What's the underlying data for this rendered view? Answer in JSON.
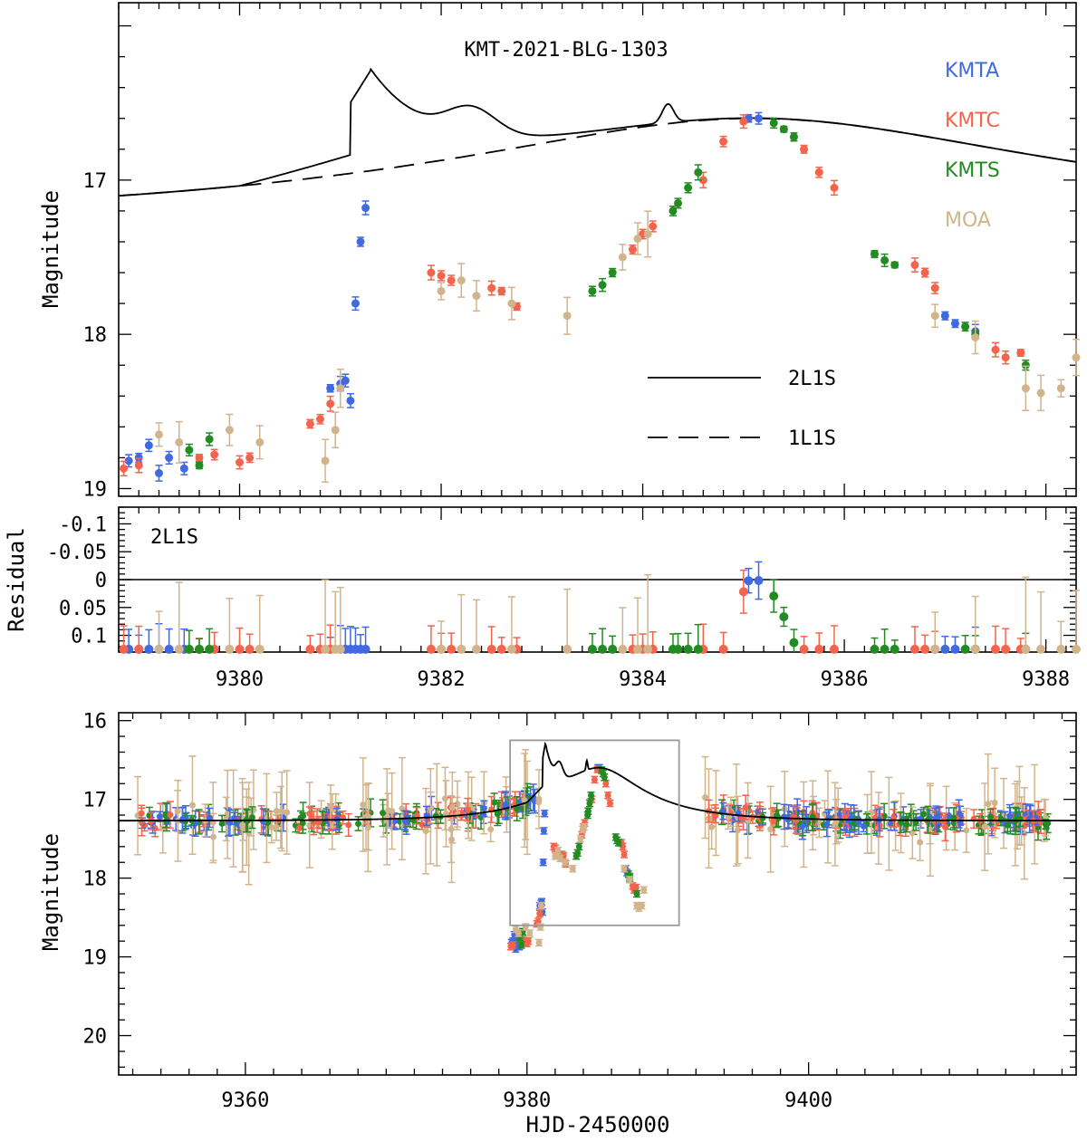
{
  "chart_data": [
    {
      "type": "scatter",
      "panel": "top",
      "title": "KMT-2021-BLG-1303",
      "xlabel": "",
      "ylabel": "Magnitude",
      "xlim": [
        9378.8,
        9388.3
      ],
      "ylim": [
        19.05,
        15.85
      ],
      "y_inverted": true,
      "x_ticks": [
        "9380",
        "9382",
        "9384",
        "9386",
        "9388"
      ],
      "y_ticks": [
        "17",
        "18",
        "19"
      ],
      "legend": [
        {
          "name": "KMTA",
          "color": "#4169e1"
        },
        {
          "name": "KMTC",
          "color": "#f4644c"
        },
        {
          "name": "KMTS",
          "color": "#228b22"
        },
        {
          "name": "MOA",
          "color": "#d2b48c"
        }
      ],
      "model_legend": [
        {
          "name": "2L1S",
          "style": "solid"
        },
        {
          "name": "1L1S",
          "style": "dashed"
        }
      ],
      "series": [
        {
          "name": "KMTA",
          "color": "#4169e1",
          "points": [
            [
              9378.9,
              18.82
            ],
            [
              9379.0,
              18.8
            ],
            [
              9379.1,
              18.72
            ],
            [
              9379.2,
              18.9
            ],
            [
              9379.3,
              18.8
            ],
            [
              9379.45,
              18.87
            ],
            [
              9380.9,
              18.35
            ],
            [
              9381.0,
              18.32
            ],
            [
              9381.05,
              18.3
            ],
            [
              9381.1,
              18.43
            ],
            [
              9381.15,
              17.8
            ],
            [
              9381.2,
              17.4
            ],
            [
              9381.25,
              17.18
            ],
            [
              9385.05,
              16.6
            ],
            [
              9385.15,
              16.6
            ],
            [
              9387.0,
              17.88
            ],
            [
              9387.1,
              17.93
            ],
            [
              9387.3,
              17.98
            ]
          ]
        },
        {
          "name": "KMTC",
          "color": "#f4644c",
          "points": [
            [
              9378.85,
              18.87
            ],
            [
              9379.0,
              18.85
            ],
            [
              9379.6,
              18.8
            ],
            [
              9379.75,
              18.78
            ],
            [
              9380.0,
              18.83
            ],
            [
              9380.1,
              18.8
            ],
            [
              9380.7,
              18.58
            ],
            [
              9380.8,
              18.55
            ],
            [
              9380.9,
              18.45
            ],
            [
              9381.9,
              17.6
            ],
            [
              9382.0,
              17.62
            ],
            [
              9382.1,
              17.65
            ],
            [
              9382.5,
              17.7
            ],
            [
              9382.6,
              17.72
            ],
            [
              9382.75,
              17.82
            ],
            [
              9383.9,
              17.45
            ],
            [
              9384.0,
              17.35
            ],
            [
              9384.1,
              17.3
            ],
            [
              9384.6,
              17.0
            ],
            [
              9384.8,
              16.75
            ],
            [
              9385.0,
              16.62
            ],
            [
              9385.6,
              16.8
            ],
            [
              9385.75,
              16.95
            ],
            [
              9385.9,
              17.05
            ],
            [
              9386.7,
              17.55
            ],
            [
              9386.8,
              17.6
            ],
            [
              9386.9,
              17.7
            ],
            [
              9387.5,
              18.1
            ],
            [
              9387.6,
              18.15
            ],
            [
              9387.75,
              18.12
            ]
          ]
        },
        {
          "name": "KMTS",
          "color": "#228b22",
          "points": [
            [
              9379.5,
              18.75
            ],
            [
              9379.6,
              18.85
            ],
            [
              9379.7,
              18.68
            ],
            [
              9383.5,
              17.72
            ],
            [
              9383.6,
              17.68
            ],
            [
              9383.7,
              17.6
            ],
            [
              9384.3,
              17.2
            ],
            [
              9384.35,
              17.15
            ],
            [
              9384.45,
              17.05
            ],
            [
              9384.55,
              16.95
            ],
            [
              9385.3,
              16.63
            ],
            [
              9385.4,
              16.67
            ],
            [
              9385.5,
              16.72
            ],
            [
              9386.3,
              17.48
            ],
            [
              9386.4,
              17.52
            ],
            [
              9386.5,
              17.55
            ],
            [
              9387.2,
              17.95
            ],
            [
              9387.3,
              18.0
            ],
            [
              9387.8,
              18.2
            ]
          ]
        },
        {
          "name": "MOA",
          "color": "#d2b48c",
          "points": [
            [
              9379.2,
              18.65
            ],
            [
              9379.4,
              18.7
            ],
            [
              9379.9,
              18.62
            ],
            [
              9380.2,
              18.7
            ],
            [
              9380.85,
              18.82
            ],
            [
              9380.95,
              18.62
            ],
            [
              9381.0,
              18.35
            ],
            [
              9382.0,
              17.72
            ],
            [
              9382.2,
              17.65
            ],
            [
              9382.35,
              17.75
            ],
            [
              9382.7,
              17.8
            ],
            [
              9383.25,
              17.88
            ],
            [
              9383.8,
              17.5
            ],
            [
              9383.95,
              17.38
            ],
            [
              9384.05,
              17.35
            ],
            [
              9386.9,
              17.88
            ],
            [
              9387.3,
              18.02
            ],
            [
              9387.8,
              18.35
            ],
            [
              9387.95,
              18.38
            ],
            [
              9388.15,
              18.35
            ],
            [
              9388.3,
              18.15
            ]
          ]
        }
      ]
    },
    {
      "type": "scatter",
      "panel": "residual",
      "xlabel": "",
      "ylabel": "Residual",
      "label": "2L1S",
      "xlim": [
        9378.8,
        9388.3
      ],
      "ylim": [
        0.13,
        -0.13
      ],
      "y_ticks": [
        "0.1",
        "0.05",
        "0",
        "-0.05",
        "-0.1"
      ],
      "reference_line": 0
    },
    {
      "type": "scatter",
      "panel": "bottom",
      "xlabel": "HJD-2450000",
      "ylabel": "Magnitude",
      "xlim": [
        9351,
        9419
      ],
      "ylim": [
        20.5,
        15.9
      ],
      "y_inverted": true,
      "x_ticks": [
        "9360",
        "9380",
        "9400"
      ],
      "y_ticks": [
        "16",
        "17",
        "18",
        "19",
        "20"
      ],
      "zoom_box": {
        "x": [
          9378.8,
          9390.8
        ],
        "y": [
          16.25,
          18.6
        ]
      }
    }
  ],
  "colors": {
    "KMTA": "#4169e1",
    "KMTC": "#f4644c",
    "KMTS": "#228b22",
    "MOA": "#d2b48c",
    "model": "#000000",
    "zoom_box": "#999999"
  }
}
